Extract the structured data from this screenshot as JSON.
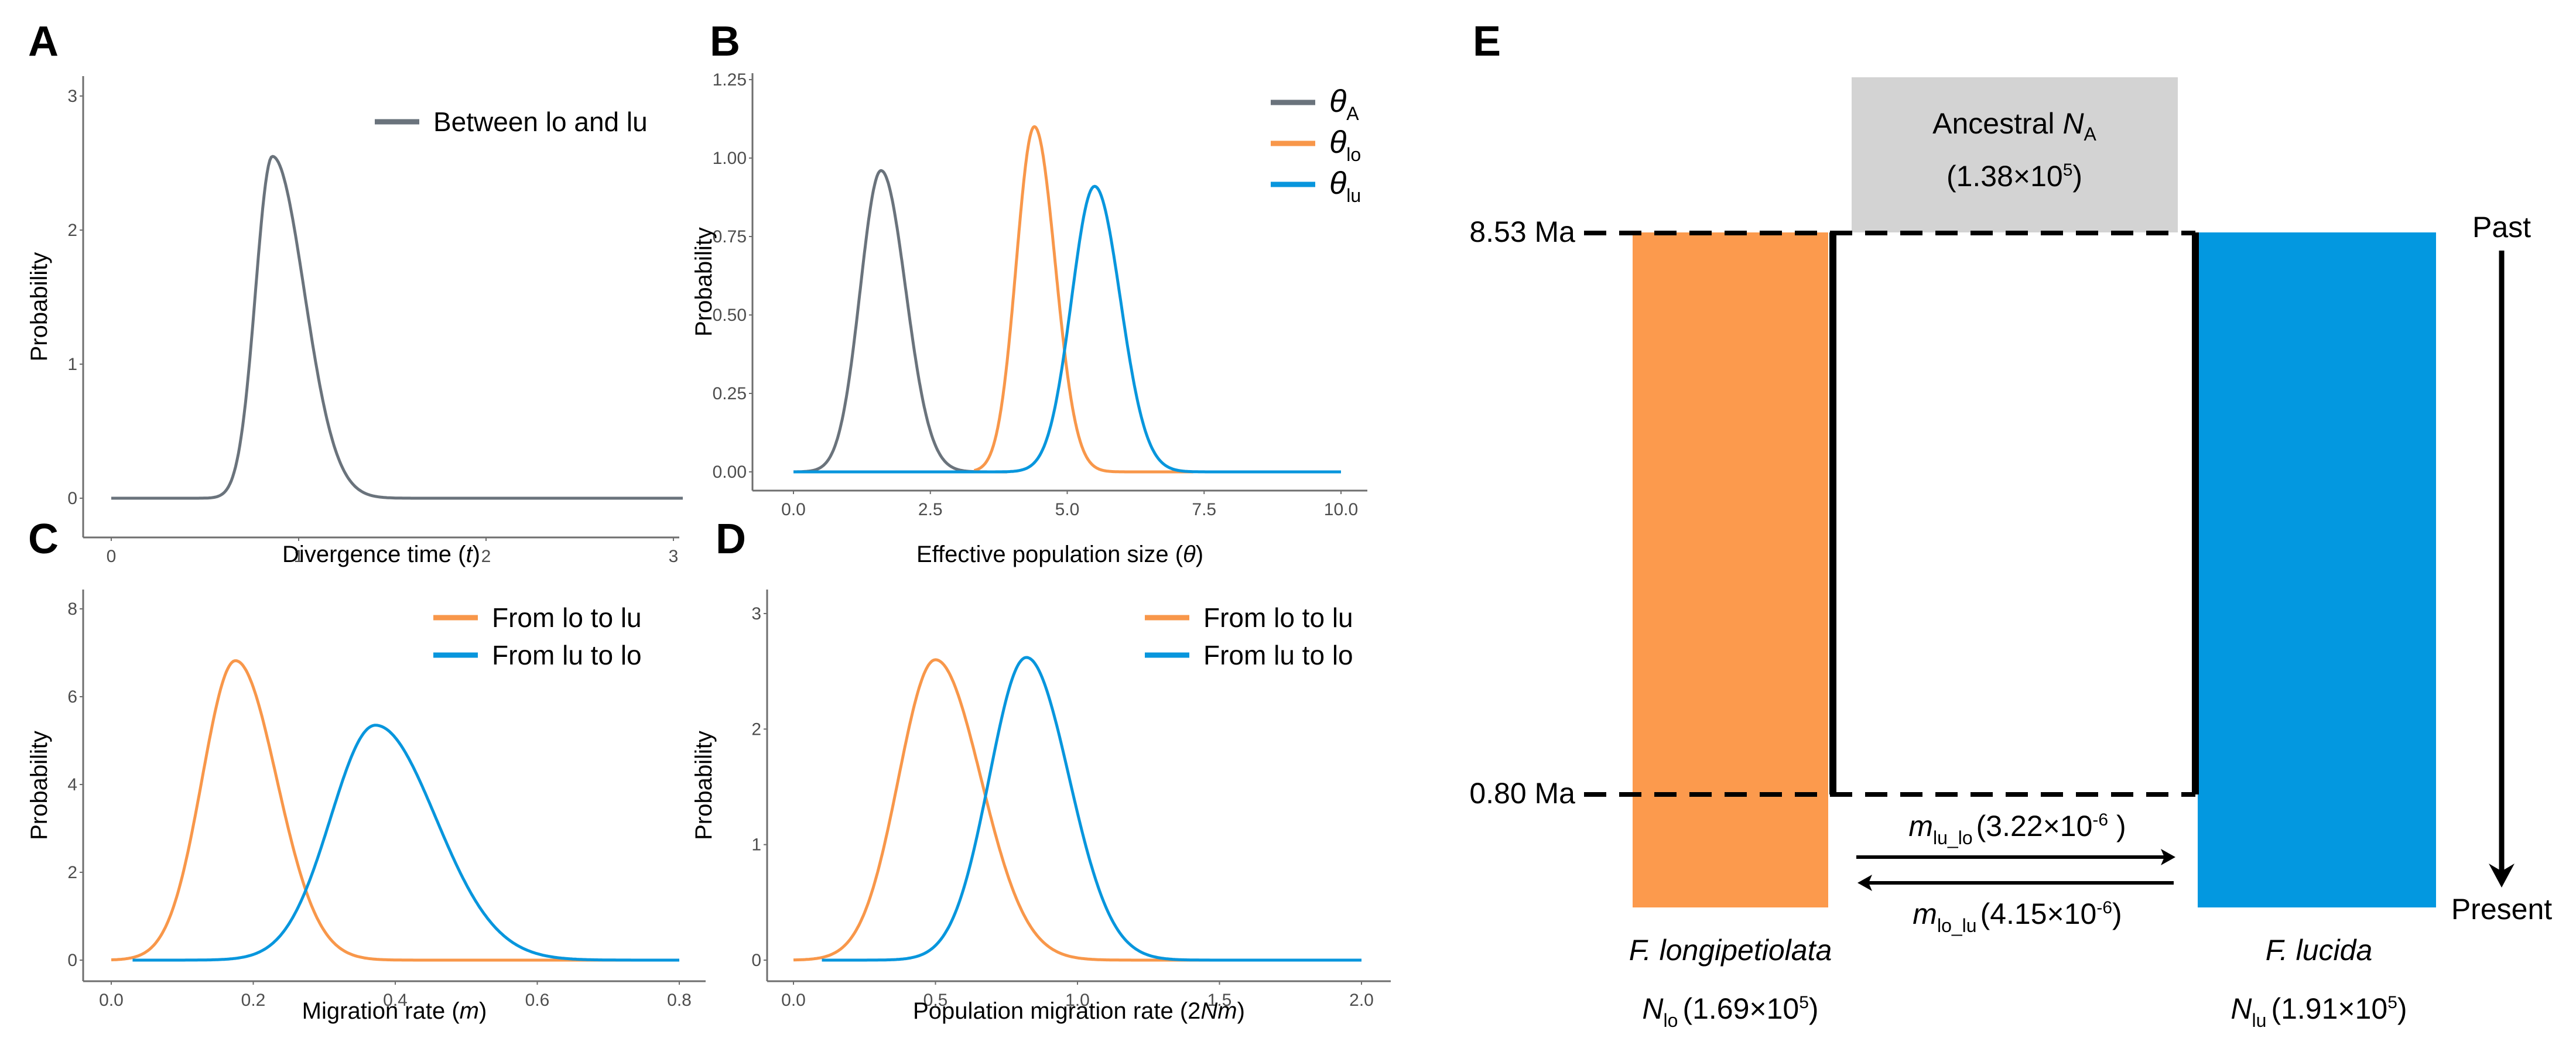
{
  "figure": {
    "colors": {
      "grey": "#6a737c",
      "orange": "#f8974a",
      "blue": "#0896dd",
      "orange_fill": "#fc9a4d",
      "blue_fill": "#0398e0",
      "ancestral_fill": "#d3d3d3",
      "axis": "#6e6e6e"
    }
  },
  "chart_data": [
    {
      "panel": "A",
      "type": "line",
      "title": "",
      "xlabel": "Divergence time (t)",
      "xlabel_parts": [
        "Divergence time (",
        "t",
        ")"
      ],
      "ylabel": "Probability",
      "xlim": [
        0,
        3
      ],
      "ylim": [
        0,
        3
      ],
      "xticks": [
        0,
        1,
        2,
        3
      ],
      "xtick_labels": [
        "0",
        "1",
        "2",
        "3"
      ],
      "yticks": [
        0,
        1,
        2,
        3
      ],
      "ytick_labels": [
        "0",
        "1",
        "2",
        "3"
      ],
      "grid": false,
      "legend_position": "top-right",
      "series": [
        {
          "name": "Between lo and lu",
          "color": "grey",
          "peak_x": 0.86,
          "peak_y": 2.55,
          "sd_left": 0.09,
          "sd_right": 0.17,
          "x_start": 0,
          "x_end": 3.05
        }
      ]
    },
    {
      "panel": "B",
      "type": "line",
      "title": "",
      "xlabel": "Effective population size (θ)",
      "xlabel_parts": [
        "Effective population size (",
        "θ",
        ")"
      ],
      "ylabel": "Probability",
      "xlim": [
        0,
        10
      ],
      "ylim": [
        0,
        1.25
      ],
      "xticks": [
        0,
        2.5,
        5,
        7.5,
        10
      ],
      "xtick_labels": [
        "0.0",
        "2.5",
        "5.0",
        "7.5",
        "10.0"
      ],
      "yticks": [
        0,
        0.25,
        0.5,
        0.75,
        1.0,
        1.25
      ],
      "ytick_labels": [
        "0.00",
        "0.25",
        "0.50",
        "0.75",
        "1.00",
        "1.25"
      ],
      "grid": false,
      "legend_position": "top-right",
      "series": [
        {
          "name": "θ_A",
          "symbol": "θ",
          "sub": "A",
          "color": "grey",
          "peak_x": 1.6,
          "peak_y": 0.96,
          "sd_left": 0.38,
          "sd_right": 0.45,
          "x_start": 0,
          "x_end": 3.9
        },
        {
          "name": "θ_lo",
          "symbol": "θ",
          "sub": "lo",
          "color": "orange",
          "peak_x": 4.4,
          "peak_y": 1.1,
          "sd_left": 0.33,
          "sd_right": 0.38,
          "x_start": 3.3,
          "x_end": 7.3
        },
        {
          "name": "θ_lu",
          "symbol": "θ",
          "sub": "lu",
          "color": "blue",
          "peak_x": 5.5,
          "peak_y": 0.91,
          "sd_left": 0.42,
          "sd_right": 0.47,
          "x_start": 0,
          "x_end": 10
        }
      ]
    },
    {
      "panel": "C",
      "type": "line",
      "title": "",
      "xlabel": "Migration rate (m)",
      "xlabel_parts": [
        "Migration rate (",
        "m",
        ")"
      ],
      "ylabel": "Probability",
      "xlim": [
        0,
        0.8
      ],
      "ylim": [
        0,
        8
      ],
      "xticks": [
        0,
        0.2,
        0.4,
        0.6,
        0.8
      ],
      "xtick_labels": [
        "0.0",
        "0.2",
        "0.4",
        "0.6",
        "0.8"
      ],
      "yticks": [
        0,
        2,
        4,
        6,
        8
      ],
      "ytick_labels": [
        "0",
        "2",
        "4",
        "6",
        "8"
      ],
      "grid": false,
      "legend_position": "top-right",
      "series": [
        {
          "name": "From lo to lu",
          "color": "orange",
          "peak_x": 0.175,
          "peak_y": 6.82,
          "sd_left": 0.047,
          "sd_right": 0.058,
          "x_start": 0,
          "x_end": 0.8
        },
        {
          "name": "From lu to lo",
          "color": "blue",
          "peak_x": 0.372,
          "peak_y": 5.35,
          "sd_left": 0.063,
          "sd_right": 0.085,
          "x_start": 0.03,
          "x_end": 0.8
        }
      ]
    },
    {
      "panel": "D",
      "type": "line",
      "title": "",
      "xlabel": "Population migration rate (2Nm)",
      "xlabel_parts": [
        "Population migration rate (2",
        "Nm",
        ")"
      ],
      "ylabel": "Probability",
      "xlim": [
        0,
        2
      ],
      "ylim": [
        0,
        3
      ],
      "xticks": [
        0,
        0.5,
        1.0,
        1.5,
        2.0
      ],
      "xtick_labels": [
        "0.0",
        "0.5",
        "1.0",
        "1.5",
        "2.0"
      ],
      "yticks": [
        0,
        1,
        2,
        3
      ],
      "ytick_labels": [
        "0",
        "1",
        "2",
        "3"
      ],
      "grid": false,
      "legend_position": "top-right",
      "series": [
        {
          "name": "From lo to lu",
          "color": "orange",
          "peak_x": 0.5,
          "peak_y": 2.6,
          "sd_left": 0.13,
          "sd_right": 0.16,
          "x_start": 0,
          "x_end": 1.67
        },
        {
          "name": "From lu to lo",
          "color": "blue",
          "peak_x": 0.82,
          "peak_y": 2.62,
          "sd_left": 0.13,
          "sd_right": 0.15,
          "x_start": 0.1,
          "x_end": 2.0
        }
      ]
    }
  ],
  "panel_e": {
    "letter": "E",
    "ancestral": {
      "label": "Ancestral ",
      "symbol": "N",
      "sub": "A",
      "value": "(1.38×10",
      "exp": "5",
      "close": ")"
    },
    "times": {
      "upper": "8.53 Ma",
      "lower": "0.80 Ma"
    },
    "arrow": {
      "top_label": "Past",
      "bottom_label": "Present"
    },
    "migration": [
      {
        "symbol": "m",
        "sub": "lu_lo",
        "value": "(3.22×10",
        "exp": "-6",
        "close": " )",
        "direction": "right"
      },
      {
        "symbol": "m",
        "sub": "lo_lu",
        "value": "(4.15×10",
        "exp": "-6",
        "close": ")",
        "direction": "left"
      }
    ],
    "species": [
      {
        "name": "F. longipetiolata",
        "symbol": "N",
        "sub": "lo",
        "value": "(1.69×10",
        "exp": "5",
        "close": ")",
        "color": "orange_fill"
      },
      {
        "name": "F. lucida",
        "symbol": "N",
        "sub": "lu",
        "value": "(1.91×10",
        "exp": "5",
        "close": ")",
        "color": "blue_fill"
      }
    ]
  }
}
